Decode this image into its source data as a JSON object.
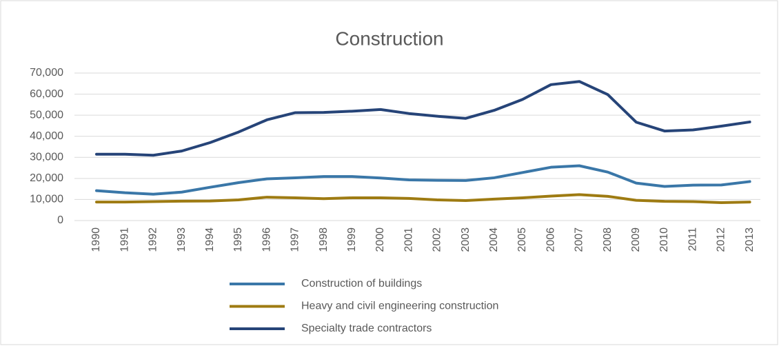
{
  "chart_data": {
    "type": "line",
    "title": "Construction",
    "categories": [
      "1990",
      "1991",
      "1992",
      "1993",
      "1994",
      "1995",
      "1996",
      "1997",
      "1998",
      "1999",
      "2000",
      "2001",
      "2002",
      "2003",
      "2004",
      "2005",
      "2006",
      "2007",
      "2008",
      "2009",
      "2010",
      "2011",
      "2012",
      "2013"
    ],
    "series": [
      {
        "name": "Construction of buildings",
        "color": "#3a77a8",
        "values": [
          14200,
          13200,
          12500,
          13500,
          15800,
          18000,
          19800,
          20300,
          20900,
          20900,
          20200,
          19300,
          19100,
          19000,
          20300,
          22800,
          25300,
          26000,
          23000,
          17800,
          16200,
          16800,
          16900,
          18500
        ]
      },
      {
        "name": "Heavy and civil engineering construction",
        "color": "#9e7b12",
        "values": [
          8800,
          8800,
          9000,
          9200,
          9300,
          9800,
          11100,
          10800,
          10400,
          10800,
          10800,
          10500,
          9800,
          9500,
          10200,
          10800,
          11600,
          12300,
          11500,
          9600,
          9100,
          9000,
          8500,
          8800
        ]
      },
      {
        "name": "Specialty trade contractors",
        "color": "#264478",
        "values": [
          31500,
          31500,
          31000,
          33000,
          37000,
          42000,
          47800,
          51200,
          51300,
          51900,
          52700,
          50800,
          49500,
          48500,
          52300,
          57500,
          64500,
          66000,
          59800,
          46700,
          42500,
          43000,
          44800,
          46800
        ]
      }
    ],
    "ylim": [
      0,
      70000
    ],
    "yticks": [
      0,
      {
        "value": 10000,
        "label": "10,000"
      },
      {
        "value": 20000,
        "label": "20,000"
      },
      {
        "value": 30000,
        "label": "30,000"
      },
      {
        "value": 40000,
        "label": "40,000"
      },
      {
        "value": 50000,
        "label": "50,000"
      },
      {
        "value": 60000,
        "label": "60,000"
      },
      {
        "value": 70000,
        "label": "70,000"
      }
    ],
    "grid": true,
    "legend": "bottom"
  }
}
